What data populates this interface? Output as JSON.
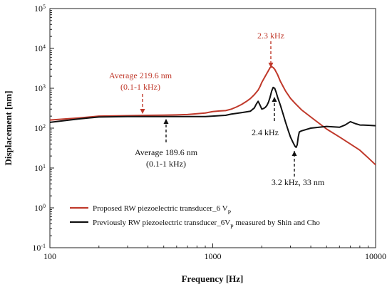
{
  "chart_data": {
    "type": "line",
    "xlabel": "Frequency [Hz]",
    "ylabel": "Displacement [nm]",
    "xscale": "log",
    "yscale": "log",
    "xlim": [
      100,
      10000
    ],
    "ylim": [
      0.1,
      100000
    ],
    "x_ticks": [
      {
        "value": 100,
        "label": "100"
      },
      {
        "value": 1000,
        "label": "1000"
      },
      {
        "value": 10000,
        "label": "10000"
      }
    ],
    "y_ticks": [
      {
        "value": 0.1,
        "base": "10",
        "exp": "-1"
      },
      {
        "value": 1,
        "base": "10",
        "exp": "0"
      },
      {
        "value": 10,
        "base": "10",
        "exp": "1"
      },
      {
        "value": 100,
        "base": "10",
        "exp": "2"
      },
      {
        "value": 1000,
        "base": "10",
        "exp": "3"
      },
      {
        "value": 10000,
        "base": "10",
        "exp": "4"
      },
      {
        "value": 100000,
        "base": "10",
        "exp": "5"
      }
    ],
    "grid": false,
    "legend_position": "bottom-left",
    "series": [
      {
        "name": "Proposed RW piezoelectric transducer_6 V",
        "name_sub": "P",
        "color": "#c0392b",
        "x": [
          100,
          150,
          200,
          300,
          400,
          500,
          600,
          700,
          800,
          900,
          1000,
          1100,
          1200,
          1300,
          1400,
          1500,
          1600,
          1700,
          1800,
          1900,
          1950,
          2000,
          2100,
          2200,
          2250,
          2300,
          2350,
          2400,
          2500,
          2600,
          2800,
          3000,
          3200,
          3500,
          4000,
          5000,
          6000,
          7000,
          8000,
          9000,
          10000
        ],
        "y": [
          160,
          180,
          200,
          205,
          210,
          212,
          215,
          220,
          230,
          240,
          260,
          270,
          275,
          300,
          340,
          390,
          460,
          550,
          690,
          900,
          1100,
          1400,
          2000,
          2800,
          3300,
          3500,
          3300,
          3000,
          2200,
          1500,
          850,
          560,
          420,
          290,
          190,
          95,
          60,
          40,
          28,
          18,
          12
        ]
      },
      {
        "name": "Previously RW piezoelectric transducer_6V",
        "name_sub": "P",
        "name_suffix": " measured by Shin and Cho",
        "color": "#111111",
        "x": [
          100,
          150,
          200,
          300,
          400,
          500,
          600,
          700,
          800,
          900,
          1000,
          1100,
          1200,
          1300,
          1400,
          1500,
          1600,
          1700,
          1800,
          1850,
          1900,
          1950,
          2000,
          2050,
          2100,
          2150,
          2200,
          2250,
          2300,
          2350,
          2400,
          2450,
          2500,
          2600,
          2700,
          2800,
          2900,
          3000,
          3100,
          3200,
          3250,
          3300,
          3350,
          3400,
          3500,
          4000,
          5000,
          6000,
          6500,
          7000,
          7500,
          8000,
          9000,
          10000
        ],
        "y": [
          140,
          170,
          190,
          195,
          195,
          195,
          195,
          195,
          195,
          195,
          200,
          205,
          210,
          225,
          235,
          245,
          255,
          265,
          320,
          400,
          470,
          380,
          300,
          310,
          330,
          370,
          450,
          600,
          850,
          1050,
          1000,
          800,
          600,
          380,
          230,
          140,
          90,
          60,
          45,
          35,
          33,
          38,
          60,
          80,
          85,
          100,
          110,
          105,
          120,
          145,
          130,
          120,
          118,
          115
        ]
      }
    ],
    "annotations": [
      {
        "id": "avg-proposed",
        "line1": "Average 219.6 nm",
        "line2": "(0.1-1 kHz)",
        "color": "#c0392b"
      },
      {
        "id": "peak-proposed",
        "line1": "2.3 kHz",
        "color": "#c0392b"
      },
      {
        "id": "avg-previous",
        "line1": "Average 189.6 nm",
        "line2": "(0.1-1 kHz)",
        "color": "#111111"
      },
      {
        "id": "peak-previous",
        "line1": "2.4 kHz",
        "color": "#111111"
      },
      {
        "id": "dip-previous",
        "line1": "3.2 kHz, 33 nm",
        "color": "#111111"
      }
    ]
  }
}
